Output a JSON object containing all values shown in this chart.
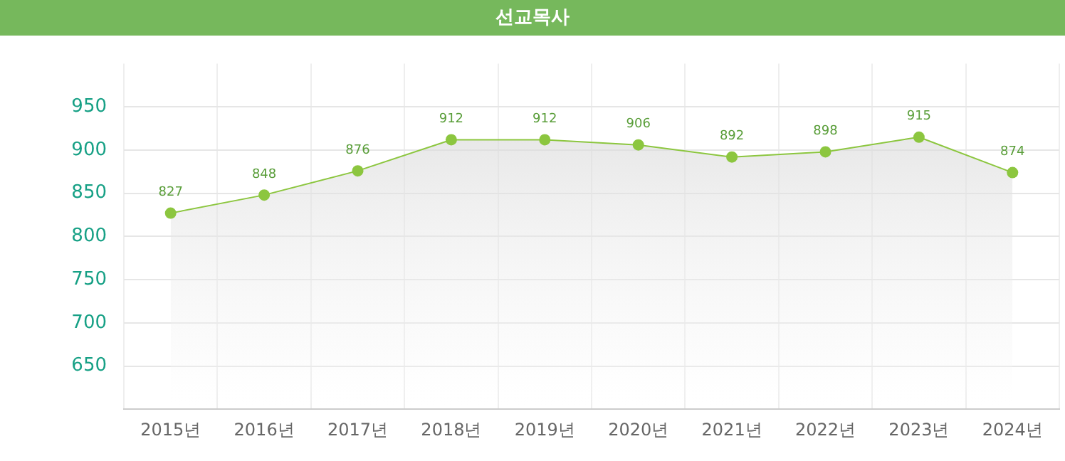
{
  "chart_data": {
    "type": "area",
    "title": "선교목사",
    "categories": [
      "2015년",
      "2016년",
      "2017년",
      "2018년",
      "2019년",
      "2020년",
      "2021년",
      "2022년",
      "2023년",
      "2024년"
    ],
    "series": [
      {
        "color": "#8cc63f",
        "values": [
          827,
          848,
          876,
          912,
          912,
          906,
          892,
          898,
          915,
          874
        ]
      }
    ],
    "ylim": [
      600,
      1000
    ],
    "yticks": [
      650,
      700,
      750,
      800,
      850,
      900,
      950
    ],
    "grid": true,
    "legend": false,
    "marker": "circle",
    "data_labels": true
  }
}
